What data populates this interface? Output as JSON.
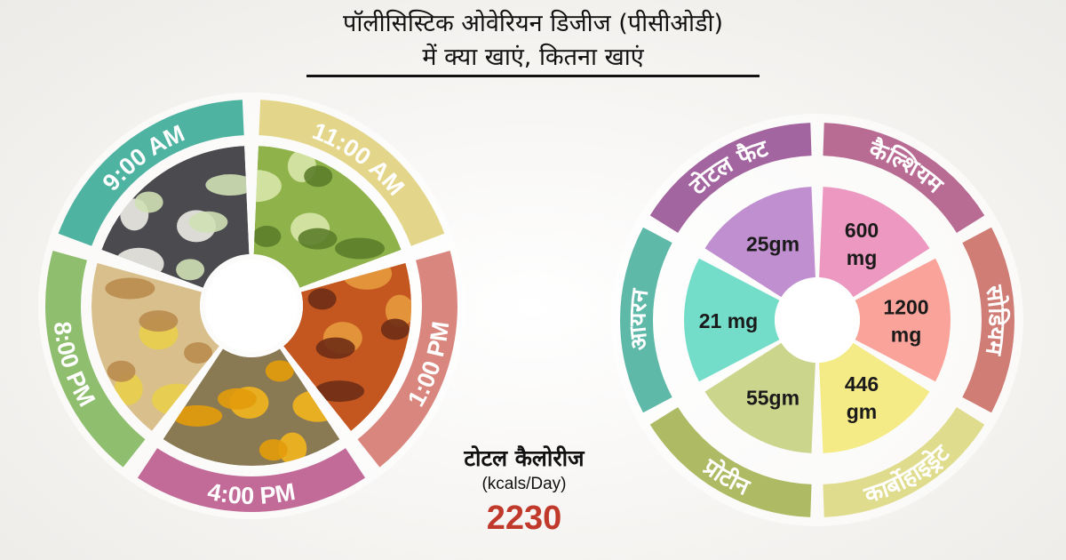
{
  "header": {
    "title_line1": "पॉलीसिस्टिक ओवेरियन डिजीज (पीसीओडी)",
    "title_line2": "में क्या खाएं, कितना खाएं"
  },
  "meal_schedule": {
    "times": [
      "9:00 AM",
      "11:00 AM",
      "1:00 PM",
      "4:00 PM",
      "8:00 PM"
    ],
    "colors": [
      "#4fb3a2",
      "#e3d68a",
      "#d9877e",
      "#c26b98",
      "#8fbf6e"
    ],
    "food_images": [
      "idli-coconut-chutney",
      "sprouted-moong",
      "fish-curry",
      "jackfruit",
      "roti-poha"
    ]
  },
  "totals": {
    "label": "टोटल कैलोरीज",
    "unit": "(kcals/Day)",
    "value": "2230"
  },
  "nutrients": {
    "labels": [
      "टोटल फैट",
      "कैल्शियम",
      "सोडियम",
      "कार्बोहाइड्रेट",
      "प्रोटीन",
      "आयरन"
    ],
    "amount_lines": [
      [
        "25gm"
      ],
      [
        "600",
        "mg"
      ],
      [
        "1200",
        "mg"
      ],
      [
        "446",
        "gm"
      ],
      [
        "55gm"
      ],
      [
        "21 mg"
      ]
    ],
    "ring_colors": [
      "#a3659f",
      "#b96c93",
      "#d07d76",
      "#e0dc8e",
      "#aebb64",
      "#5fb9a9"
    ],
    "inner_colors": [
      "#c08fd0",
      "#ec98c0",
      "#f9a39a",
      "#f4ea86",
      "#cbd58c",
      "#73ddc9"
    ]
  }
}
